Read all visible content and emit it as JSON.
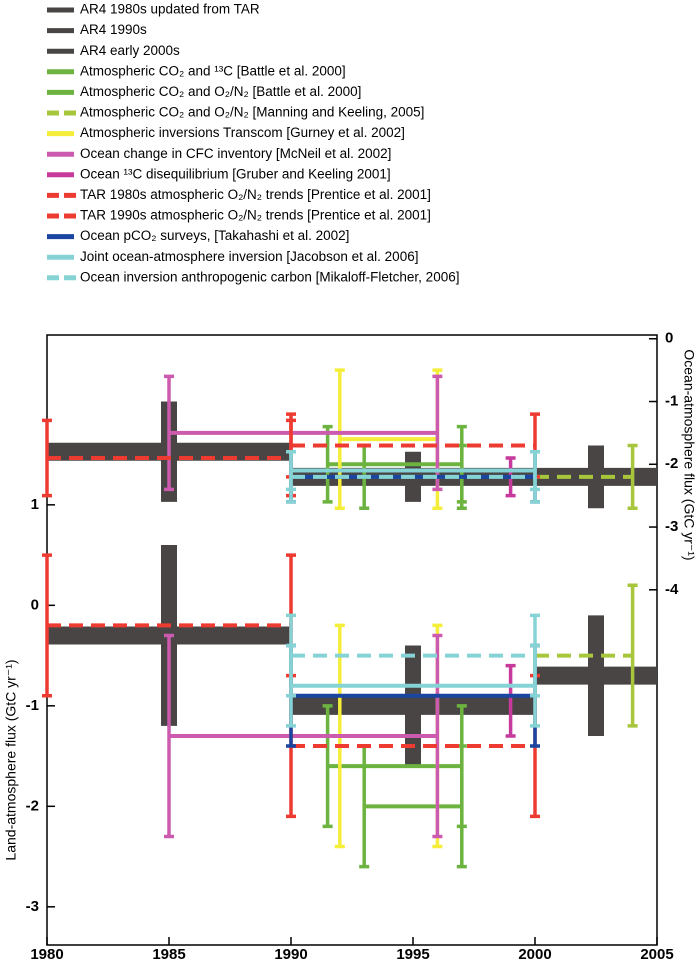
{
  "chart_data": {
    "type": "errorbar",
    "xlabel": null,
    "ylabel": "Land-atmosphere flux (GtC yr⁻¹)",
    "y2label": "Ocean-atmosphere flux (GtC yr⁻¹)",
    "xlim": [
      1980,
      2005
    ],
    "xticks": [
      1980,
      1985,
      1990,
      1995,
      2000,
      2005
    ],
    "ylim": [
      -3.38,
      2.69
    ],
    "yticks": [
      -3,
      -2,
      -1,
      0,
      1
    ],
    "y2lim": [
      -9.66,
      0.06
    ],
    "y2ticks": [
      -4,
      -3,
      -2,
      -1,
      0
    ],
    "series": [
      {
        "name": "AR4 1980s updated from TAR",
        "color": "#4a4545",
        "thick": true,
        "dash": false,
        "x": [
          1980,
          1990
        ],
        "bar_x": [
          1985
        ],
        "ocean": [
          -1.8,
          0.8
        ],
        "land": [
          -0.3,
          0.9
        ]
      },
      {
        "name": "AR4 1990s",
        "color": "#4a4545",
        "thick": true,
        "dash": false,
        "x": [
          1990,
          2000
        ],
        "bar_x": [
          1995
        ],
        "ocean": [
          -2.2,
          0.4
        ],
        "land": [
          -1.0,
          0.6
        ]
      },
      {
        "name": "AR4 early 2000s",
        "color": "#4a4545",
        "thick": true,
        "dash": false,
        "x": [
          2000,
          2005
        ],
        "bar_x": [
          2002.5
        ],
        "ocean": [
          -2.2,
          0.5
        ],
        "land": [
          -0.7,
          0.6
        ]
      },
      {
        "name": "Atmospheric CO₂ and ¹³C [Battle et al. 2000]",
        "color": "#6cb33f",
        "thick": false,
        "dash": false,
        "x": [
          1991.5,
          1997
        ],
        "ocean": [
          -2.0,
          0.6
        ],
        "land": [
          -1.6,
          0.6
        ]
      },
      {
        "name": "Atmospheric CO₂ and O₂/N₂ [Battle et al. 2000]",
        "color": "#6cb33f",
        "thick": false,
        "dash": false,
        "x": [
          1993,
          1997
        ],
        "ocean": [
          -2.2,
          0.5
        ],
        "land": [
          -2.0,
          0.6
        ]
      },
      {
        "name": "Atmospheric CO₂ and O₂/N₂ [Manning and Keeling, 2005]",
        "color": "#a8c63c",
        "thick": false,
        "dash": true,
        "x": [
          2000,
          2004
        ],
        "bar_x": [
          2004
        ],
        "ocean": [
          -2.2,
          0.5
        ],
        "land": [
          -0.5,
          0.7
        ]
      },
      {
        "name": "Atmospheric inversions Transcom [Gurney et al. 2002]",
        "color": "#f4ee3a",
        "thick": false,
        "dash": false,
        "x": [
          1992,
          1996
        ],
        "ocean": [
          -1.6,
          1.1
        ],
        "land": [
          -1.3,
          1.1
        ]
      },
      {
        "name": "Ocean change in CFC inventory [McNeil et al. 2002]",
        "color": "#cc5aaf",
        "thick": false,
        "dash": false,
        "x": [
          1985,
          1996
        ],
        "ocean": [
          -1.5,
          0.9
        ],
        "land": [
          -1.3,
          1.0
        ]
      },
      {
        "name": "Ocean ¹³C disequilibrium [Gruber and Keeling 2001]",
        "color": "#c73a9c",
        "thick": false,
        "dash": false,
        "x": [
          1999
        ],
        "ocean": [
          -2.2,
          0.3
        ],
        "land": [
          -0.95,
          0.35
        ]
      },
      {
        "name": "TAR 1980s atmospheric O₂/N₂ trends  [Prentice et al. 2001]",
        "color": "#ee3b32",
        "thick": false,
        "dash": true,
        "x": [
          1980,
          1990
        ],
        "ocean": [
          -1.9,
          0.6
        ],
        "land": [
          -0.2,
          0.7
        ]
      },
      {
        "name": "TAR 1990s atmospheric O₂/N₂ trends [Prentice et al. 2001]",
        "color": "#ee3b32",
        "thick": false,
        "dash": true,
        "x": [
          1990,
          2000
        ],
        "ocean": [
          -1.7,
          0.5
        ],
        "land": [
          -1.4,
          0.7
        ]
      },
      {
        "name": "Ocean pCO₂ surveys, [Takahashi et al. 2002]",
        "color": "#1a45a0",
        "thick": false,
        "dash": false,
        "x": [
          1990,
          2000
        ],
        "ocean": [
          -2.2,
          0.4
        ],
        "land": [
          -0.9,
          0.5
        ]
      },
      {
        "name": "Joint ocean-atmosphere inversion [Jacobson et al. 2006]",
        "color": "#86d3d5",
        "thick": false,
        "dash": false,
        "x": [
          1990,
          2000
        ],
        "ocean": [
          -2.1,
          0.3
        ],
        "land": [
          -0.8,
          0.4
        ]
      },
      {
        "name": "Ocean inversion anthropogenic carbon [Mikaloff-Fletcher, 2006]",
        "color": "#86d3d5",
        "thick": false,
        "dash": true,
        "x": [
          1990,
          2000
        ],
        "ocean": [
          -2.2,
          0.4
        ],
        "land": [
          -0.5,
          0.4
        ]
      }
    ]
  }
}
